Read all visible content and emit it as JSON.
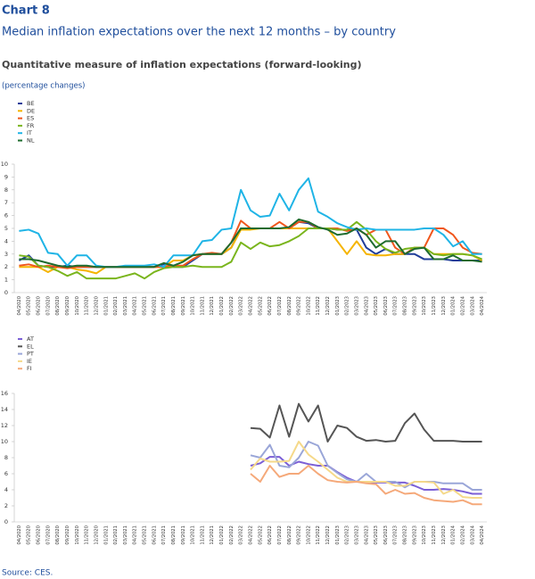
{
  "header": {
    "chart_number": "Chart 8",
    "title": "Median inflation expectations over the next 12 months – by country",
    "subtitle": "Quantitative measure of inflation expectations (forward-looking)",
    "units": "(percentage changes)"
  },
  "chart_data": [
    {
      "type": "line",
      "categories": [
        "04/2020",
        "05/2020",
        "06/2020",
        "07/2020",
        "08/2020",
        "09/2020",
        "10/2020",
        "11/2020",
        "12/2020",
        "01/2021",
        "02/2021",
        "03/2021",
        "04/2021",
        "05/2021",
        "06/2021",
        "07/2021",
        "08/2021",
        "09/2021",
        "10/2021",
        "11/2021",
        "12/2021",
        "01/2022",
        "02/2022",
        "03/2022",
        "04/2022",
        "05/2022",
        "06/2022",
        "07/2022",
        "08/2022",
        "09/2022",
        "10/2022",
        "11/2022",
        "12/2022",
        "01/2023",
        "02/2023",
        "03/2023",
        "04/2023",
        "05/2023",
        "06/2023",
        "07/2023",
        "08/2023",
        "09/2023",
        "10/2023",
        "11/2023",
        "12/2023",
        "01/2024",
        "02/2024",
        "03/2024",
        "04/2024"
      ],
      "ylim": [
        0,
        10
      ],
      "yticks": [
        0,
        1,
        2,
        3,
        4,
        5,
        6,
        7,
        8,
        9,
        10
      ],
      "grid": false,
      "legend": "top-left",
      "series": [
        {
          "name": "BE",
          "color": "#1f3d99",
          "values": [
            2.5,
            2.9,
            2.1,
            2.0,
            2.0,
            2.1,
            2.0,
            2.0,
            2.0,
            2.0,
            2.0,
            2.0,
            2.0,
            2.0,
            2.0,
            2.2,
            2.0,
            2.0,
            2.5,
            3.0,
            3.0,
            3.0,
            3.5,
            5.0,
            5.0,
            5.0,
            5.0,
            5.0,
            5.0,
            5.5,
            5.4,
            5.0,
            5.0,
            4.9,
            4.9,
            4.9,
            3.5,
            3.0,
            3.4,
            3.0,
            3.0,
            3.0,
            2.6,
            2.6,
            2.6,
            2.5,
            2.5,
            2.5,
            2.5
          ]
        },
        {
          "name": "DE",
          "color": "#f5b400",
          "values": [
            2.0,
            2.0,
            2.0,
            1.6,
            2.0,
            2.0,
            1.8,
            1.7,
            1.5,
            2.0,
            2.0,
            2.0,
            2.0,
            2.0,
            2.0,
            2.0,
            2.5,
            2.5,
            2.9,
            3.0,
            3.0,
            3.0,
            3.5,
            4.9,
            4.9,
            5.0,
            5.0,
            5.0,
            5.0,
            5.0,
            5.0,
            5.0,
            5.0,
            4.0,
            3.0,
            4.0,
            3.0,
            2.9,
            2.9,
            3.0,
            3.0,
            3.5,
            3.5,
            3.0,
            3.0,
            3.0,
            3.0,
            2.9,
            2.5
          ]
        },
        {
          "name": "ES",
          "color": "#f0561c",
          "values": [
            2.1,
            2.2,
            2.0,
            2.1,
            2.0,
            1.9,
            2.0,
            2.0,
            2.0,
            2.0,
            2.0,
            2.0,
            2.0,
            2.0,
            2.0,
            2.0,
            2.1,
            2.1,
            2.6,
            3.0,
            3.1,
            3.0,
            3.9,
            5.6,
            5.0,
            5.0,
            5.0,
            5.5,
            5.0,
            5.5,
            5.5,
            5.0,
            5.0,
            5.0,
            4.8,
            5.0,
            4.5,
            4.9,
            4.9,
            3.5,
            3.0,
            3.5,
            3.5,
            5.0,
            5.0,
            4.5,
            3.5,
            3.1,
            3.0
          ]
        },
        {
          "name": "FR",
          "color": "#7ab51d",
          "values": [
            2.9,
            2.8,
            2.1,
            2.0,
            1.7,
            1.3,
            1.6,
            1.1,
            1.1,
            1.1,
            1.1,
            1.3,
            1.5,
            1.1,
            1.6,
            1.9,
            2.0,
            2.0,
            2.1,
            2.0,
            2.0,
            2.0,
            2.4,
            3.9,
            3.4,
            3.9,
            3.6,
            3.7,
            4.0,
            4.4,
            5.0,
            5.0,
            5.0,
            4.9,
            4.9,
            5.5,
            4.9,
            4.0,
            3.4,
            3.1,
            3.4,
            3.5,
            3.5,
            3.0,
            2.9,
            3.0,
            3.0,
            2.9,
            2.6
          ]
        },
        {
          "name": "IT",
          "color": "#1fb4e6",
          "values": [
            4.8,
            4.9,
            4.6,
            3.1,
            3.0,
            2.1,
            2.9,
            2.9,
            2.1,
            2.0,
            2.0,
            2.1,
            2.1,
            2.1,
            2.2,
            2.0,
            2.9,
            2.9,
            2.9,
            4.0,
            4.1,
            4.9,
            5.0,
            8.0,
            6.4,
            5.9,
            6.0,
            7.7,
            6.4,
            8.0,
            8.9,
            6.3,
            5.9,
            5.4,
            5.1,
            4.9,
            5.0,
            4.9,
            4.9,
            4.9,
            4.9,
            4.9,
            5.0,
            5.0,
            4.5,
            3.6,
            4.0,
            3.0,
            3.0
          ]
        },
        {
          "name": "NL",
          "color": "#1e6b2e",
          "values": [
            2.6,
            2.6,
            2.5,
            2.3,
            2.1,
            2.0,
            2.1,
            2.1,
            2.0,
            2.0,
            2.0,
            2.0,
            2.0,
            2.0,
            2.0,
            2.3,
            2.1,
            2.4,
            2.9,
            3.0,
            3.0,
            3.0,
            3.9,
            5.0,
            5.0,
            5.0,
            5.0,
            5.0,
            5.1,
            5.7,
            5.5,
            5.1,
            4.9,
            4.5,
            4.6,
            5.0,
            4.5,
            3.5,
            4.0,
            4.0,
            3.0,
            3.4,
            3.5,
            2.6,
            2.6,
            2.9,
            2.5,
            2.5,
            2.4
          ]
        }
      ]
    },
    {
      "type": "line",
      "categories": [
        "04/2020",
        "05/2020",
        "06/2020",
        "07/2020",
        "08/2020",
        "09/2020",
        "10/2020",
        "11/2020",
        "12/2020",
        "01/2021",
        "02/2021",
        "03/2021",
        "04/2021",
        "05/2021",
        "06/2021",
        "07/2021",
        "08/2021",
        "09/2021",
        "10/2021",
        "11/2021",
        "12/2021",
        "01/2022",
        "02/2022",
        "03/2022",
        "04/2022",
        "05/2022",
        "06/2022",
        "07/2022",
        "08/2022",
        "09/2022",
        "10/2022",
        "11/2022",
        "12/2022",
        "01/2023",
        "02/2023",
        "03/2023",
        "04/2023",
        "05/2023",
        "06/2023",
        "07/2023",
        "08/2023",
        "09/2023",
        "10/2023",
        "11/2023",
        "12/2023",
        "01/2024",
        "02/2024",
        "03/2024",
        "04/2024"
      ],
      "ylim": [
        0,
        16
      ],
      "yticks": [
        0,
        2,
        4,
        6,
        8,
        10,
        12,
        14,
        16
      ],
      "grid": false,
      "legend": "top-left",
      "series": [
        {
          "name": "AT",
          "color": "#7b5fd6",
          "values": [
            null,
            null,
            null,
            null,
            null,
            null,
            null,
            null,
            null,
            null,
            null,
            null,
            null,
            null,
            null,
            null,
            null,
            null,
            null,
            null,
            null,
            null,
            null,
            null,
            7.0,
            7.3,
            8.1,
            8.1,
            7.0,
            7.5,
            7.2,
            7.0,
            7.0,
            6.2,
            5.5,
            5.0,
            5.0,
            4.9,
            4.9,
            4.9,
            4.9,
            4.5,
            4.0,
            4.0,
            4.1,
            4.0,
            3.8,
            3.5,
            3.5
          ]
        },
        {
          "name": "EL",
          "color": "#555555",
          "values": [
            null,
            null,
            null,
            null,
            null,
            null,
            null,
            null,
            null,
            null,
            null,
            null,
            null,
            null,
            null,
            null,
            null,
            null,
            null,
            null,
            null,
            null,
            null,
            null,
            11.7,
            11.6,
            10.5,
            14.5,
            10.6,
            14.7,
            12.5,
            14.5,
            10.0,
            12.0,
            11.7,
            10.6,
            10.1,
            10.2,
            10.0,
            10.1,
            12.3,
            13.5,
            11.5,
            10.1,
            10.1,
            10.1,
            10.0,
            10.0,
            10.0
          ]
        },
        {
          "name": "PT",
          "color": "#9aa6d8",
          "values": [
            null,
            null,
            null,
            null,
            null,
            null,
            null,
            null,
            null,
            null,
            null,
            null,
            null,
            null,
            null,
            null,
            null,
            null,
            null,
            null,
            null,
            null,
            null,
            null,
            8.3,
            8.0,
            9.6,
            7.0,
            6.8,
            8.0,
            10.0,
            9.5,
            7.0,
            6.1,
            5.3,
            5.0,
            6.0,
            5.0,
            5.0,
            5.0,
            4.3,
            5.0,
            5.0,
            5.0,
            4.8,
            4.8,
            4.8,
            4.0,
            4.0
          ]
        },
        {
          "name": "IE",
          "color": "#f5d98a",
          "values": [
            null,
            null,
            null,
            null,
            null,
            null,
            null,
            null,
            null,
            null,
            null,
            null,
            null,
            null,
            null,
            null,
            null,
            null,
            null,
            null,
            null,
            null,
            null,
            null,
            6.5,
            7.9,
            7.5,
            7.5,
            7.6,
            10.0,
            8.4,
            7.5,
            6.5,
            5.5,
            5.0,
            5.0,
            5.0,
            5.0,
            5.0,
            4.5,
            4.5,
            5.0,
            5.0,
            4.9,
            3.5,
            4.0,
            3.1,
            3.0,
            3.0
          ]
        },
        {
          "name": "FI",
          "color": "#f5a97a",
          "values": [
            null,
            null,
            null,
            null,
            null,
            null,
            null,
            null,
            null,
            null,
            null,
            null,
            null,
            null,
            null,
            null,
            null,
            null,
            null,
            null,
            null,
            null,
            null,
            null,
            6.0,
            5.0,
            7.0,
            5.6,
            6.0,
            6.0,
            7.0,
            6.0,
            5.2,
            5.0,
            4.9,
            5.0,
            4.8,
            4.7,
            3.5,
            4.0,
            3.5,
            3.6,
            3.0,
            2.7,
            2.6,
            2.5,
            2.7,
            2.2,
            2.2
          ]
        }
      ]
    }
  ],
  "source": "Source: CES."
}
